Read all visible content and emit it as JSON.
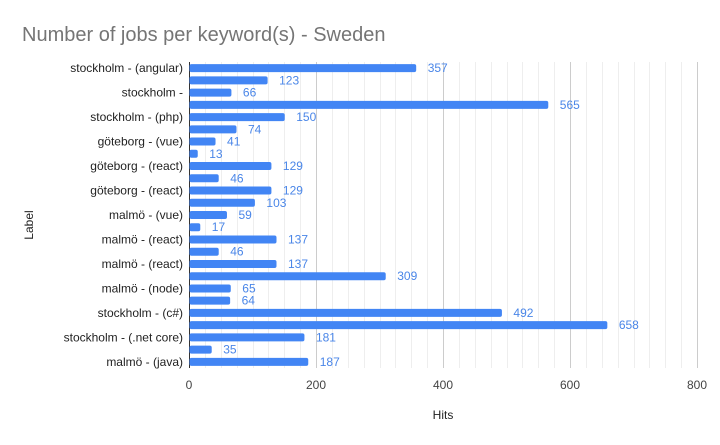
{
  "chart_data": {
    "type": "bar",
    "orientation": "horizontal",
    "title": "Number of jobs per keyword(s) - Sweden",
    "xlabel": "Hits",
    "ylabel": "Label",
    "xlim": [
      0,
      800
    ],
    "xticks": [
      0,
      200,
      400,
      600,
      800
    ],
    "grid": true,
    "bar_color": "#4285f4",
    "label_color": "#4a86e8",
    "rows": [
      {
        "label": "stockholm - (angular)",
        "value": 357
      },
      {
        "label": "",
        "value": 123
      },
      {
        "label": "stockholm -",
        "value": 66
      },
      {
        "label": "",
        "value": 565
      },
      {
        "label": "stockholm - (php)",
        "value": 150
      },
      {
        "label": "",
        "value": 74
      },
      {
        "label": "göteborg - (vue)",
        "value": 41
      },
      {
        "label": "",
        "value": 13
      },
      {
        "label": "göteborg - (react)",
        "value": 129
      },
      {
        "label": "",
        "value": 46
      },
      {
        "label": "göteborg - (react)",
        "value": 129
      },
      {
        "label": "",
        "value": 103
      },
      {
        "label": "malmö - (vue)",
        "value": 59
      },
      {
        "label": "",
        "value": 17
      },
      {
        "label": "malmö - (react)",
        "value": 137
      },
      {
        "label": "",
        "value": 46
      },
      {
        "label": "malmö - (react)",
        "value": 137
      },
      {
        "label": "",
        "value": 309
      },
      {
        "label": "malmö - (node)",
        "value": 65
      },
      {
        "label": "",
        "value": 64
      },
      {
        "label": "stockholm - (c#)",
        "value": 492
      },
      {
        "label": "",
        "value": 658
      },
      {
        "label": "stockholm - (.net core)",
        "value": 181
      },
      {
        "label": "",
        "value": 35
      },
      {
        "label": "malmö - (java)",
        "value": 187
      }
    ]
  }
}
